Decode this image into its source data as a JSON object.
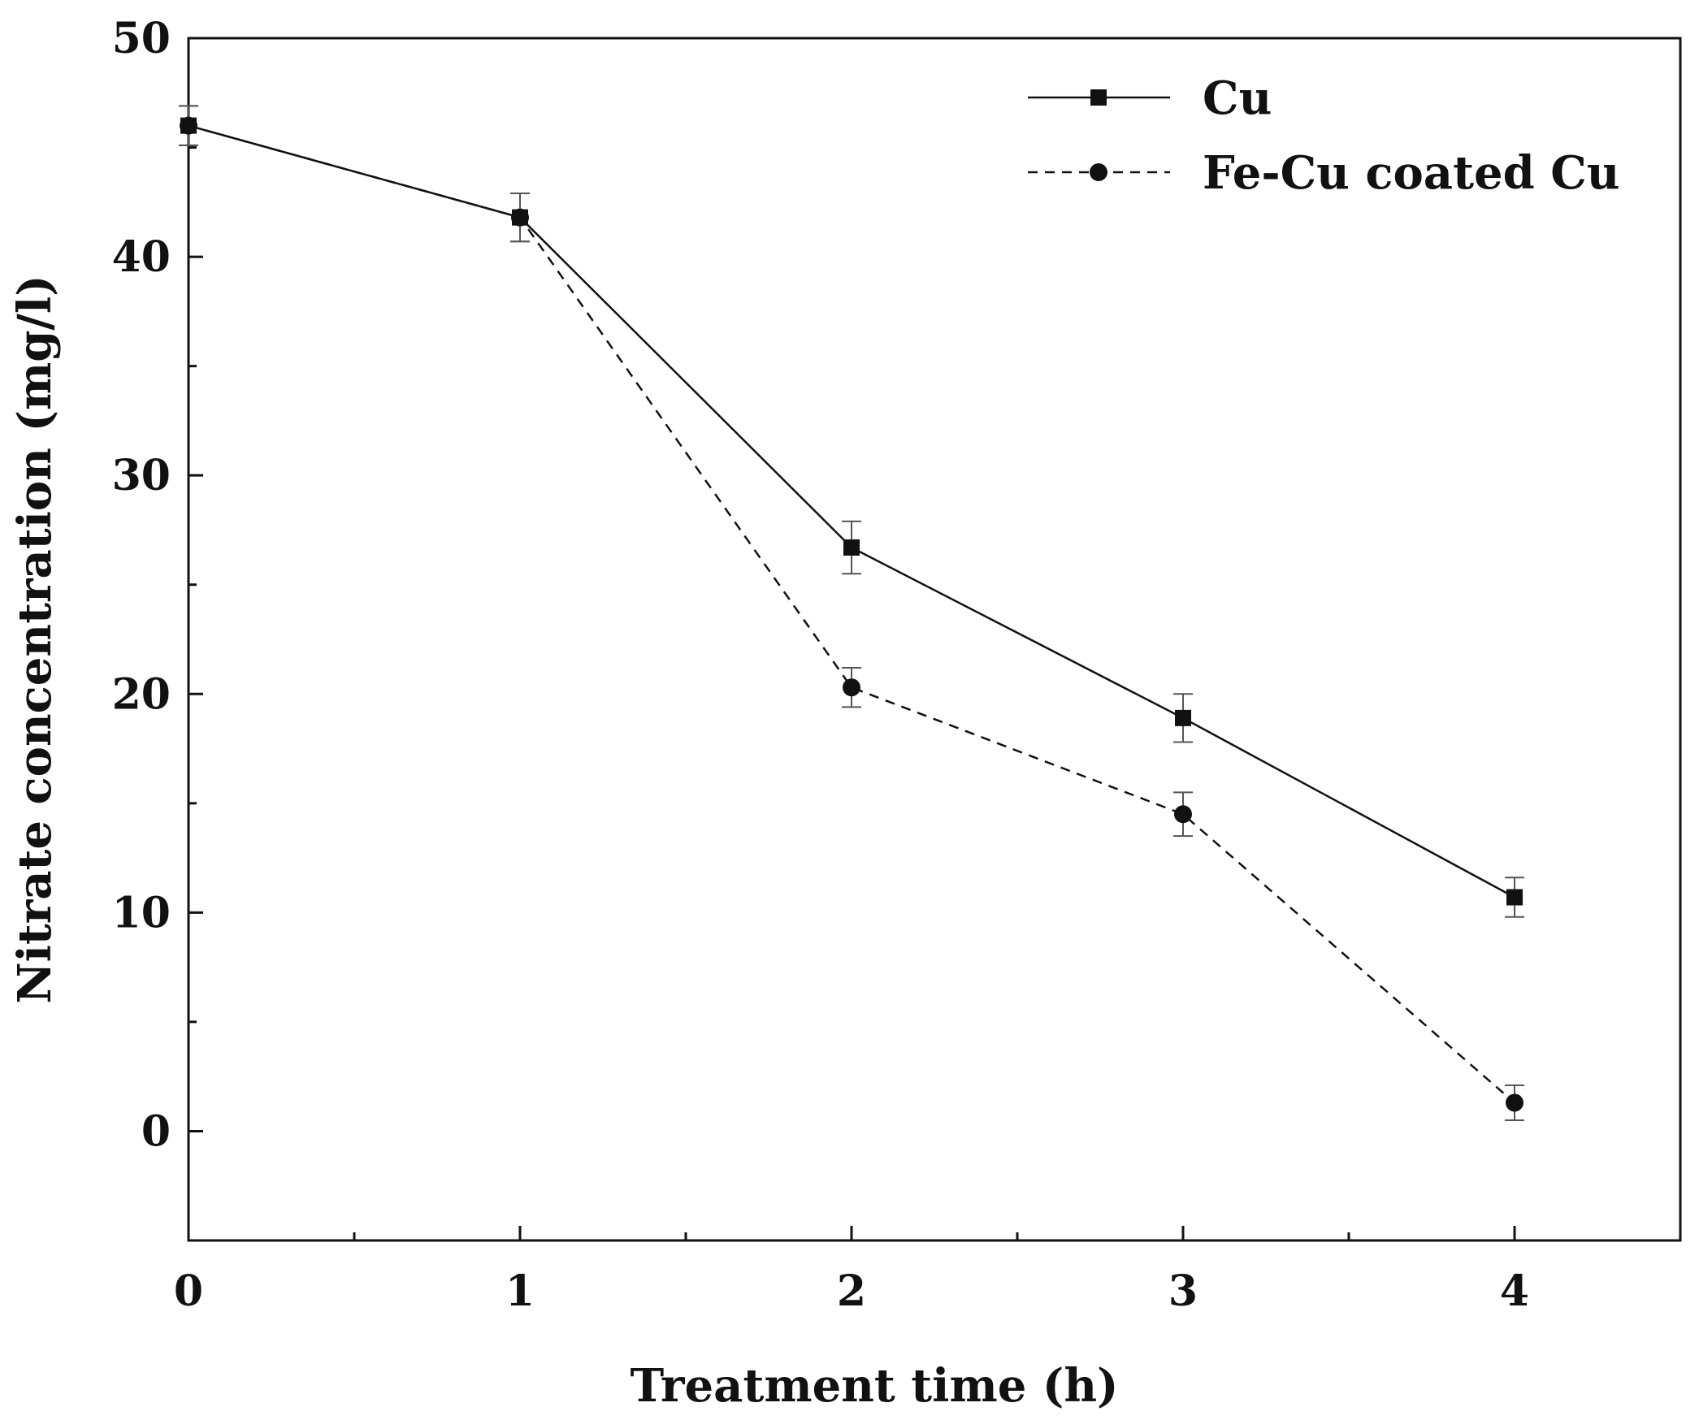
{
  "chart_data": {
    "type": "line",
    "title": "",
    "xlabel": "Treatment time (h)",
    "ylabel": "Nitrate concentration (mg/l)",
    "xlim": [
      0,
      4.5
    ],
    "ylim": [
      -5,
      50
    ],
    "x_ticks": [
      0,
      1,
      2,
      3,
      4
    ],
    "x_tick_labels": [
      "0",
      "1",
      "2",
      "3",
      "4"
    ],
    "x_minor_ticks": [
      0.5,
      1.5,
      2.5,
      3.5,
      4.5
    ],
    "y_ticks": [
      0,
      10,
      20,
      30,
      40,
      50
    ],
    "y_tick_labels": [
      "0",
      "10",
      "20",
      "30",
      "40",
      "50"
    ],
    "y_minor_ticks": [
      -5,
      5,
      15,
      25,
      35,
      45
    ],
    "grid": false,
    "legend_position": "top-right",
    "series": [
      {
        "name": "Cu",
        "marker": "square",
        "line_style": "solid",
        "color": "#111111",
        "x": [
          0,
          1,
          2,
          3,
          4
        ],
        "values": [
          46.0,
          41.8,
          26.7,
          18.9,
          10.7
        ],
        "errors": [
          0.9,
          1.1,
          1.2,
          1.1,
          0.9
        ]
      },
      {
        "name": "Fe-Cu coated Cu",
        "marker": "circle",
        "line_style": "dashed",
        "color": "#111111",
        "x": [
          0,
          1,
          2,
          3,
          4
        ],
        "values": [
          46.0,
          41.8,
          20.3,
          14.5,
          1.3
        ],
        "errors": [
          0.9,
          1.1,
          0.9,
          1.0,
          0.8
        ]
      }
    ]
  }
}
